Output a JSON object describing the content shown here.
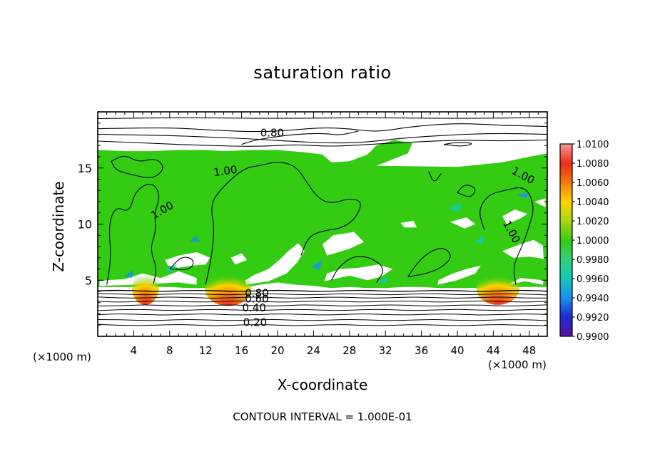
{
  "chart_data": {
    "type": "heatmap",
    "title": "saturation ratio",
    "xlabel": "X-coordinate",
    "ylabel": "Z-coordinate",
    "x_units": "(×1000 m)",
    "z_units": "(×1000 m)",
    "xlim": [
      0,
      50
    ],
    "ylim": [
      0,
      20
    ],
    "x_ticks": [
      4,
      8,
      12,
      16,
      20,
      24,
      28,
      32,
      36,
      40,
      44,
      48
    ],
    "y_ticks": [
      5,
      10,
      15
    ],
    "colorbar": {
      "levels": [
        "1.0100",
        "1.0080",
        "1.0060",
        "1.0040",
        "1.0020",
        "1.0000",
        "0.9980",
        "0.9960",
        "0.9940",
        "0.9920",
        "0.9900"
      ],
      "colors": [
        "#f49a9a",
        "#ee2a1c",
        "#f57a10",
        "#fbd300",
        "#a8d812",
        "#33cc12",
        "#33d07a",
        "#12c8b8",
        "#1a8ef2",
        "#1c2ad0",
        "#5a149a"
      ]
    },
    "fill_color": "#33cc12",
    "contour_labels": [
      "0.80",
      "1.00",
      "1.00",
      "1.00",
      "1.00",
      "0.80",
      "0.60",
      "0.40",
      "0.20"
    ],
    "contour_interval_text": "CONTOUR INTERVAL = 1.000E-01"
  }
}
